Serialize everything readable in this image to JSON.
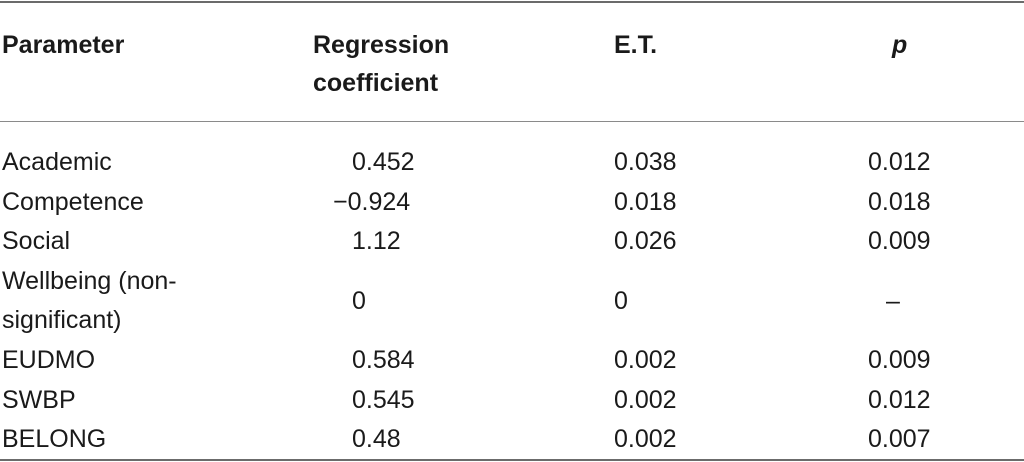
{
  "table": {
    "columns": [
      "Parameter",
      "Regression coefficient",
      "E.T.",
      "p"
    ],
    "header": {
      "parameter": "Parameter",
      "coef_line1": "Regression",
      "coef_line2": "coefficient",
      "et": "E.T.",
      "p": "p"
    },
    "rows": [
      {
        "parameter": "Academic",
        "coef": "0.452",
        "et": "0.038",
        "p": "0.012"
      },
      {
        "parameter": "Competence",
        "coef": "−0.924",
        "et": "0.018",
        "p": "0.018"
      },
      {
        "parameter": "Social",
        "coef": "1.12",
        "et": "0.026",
        "p": "0.009"
      },
      {
        "parameter_line1": "Wellbeing (non-",
        "parameter_line2": "significant)",
        "coef": "0",
        "et": "0",
        "p": "–"
      },
      {
        "parameter": "EUDMO",
        "coef": "0.584",
        "et": "0.002",
        "p": "0.009"
      },
      {
        "parameter": "SWBP",
        "coef": "0.545",
        "et": "0.002",
        "p": "0.012"
      },
      {
        "parameter": "BELONG",
        "coef": "0.48",
        "et": "0.002",
        "p": "0.007"
      }
    ]
  }
}
